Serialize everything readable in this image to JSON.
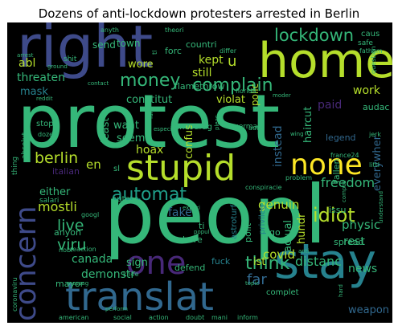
{
  "title": "Dozens of anti-lockdown protesters arrested in Berlin",
  "colors": {
    "background": "#000000",
    "green": "#35b779",
    "lime": "#b5de2b",
    "yellow": "#fde725",
    "teal": "#1f9e89",
    "blue": "#31688e",
    "indigo": "#3e4a89",
    "purple": "#482878",
    "cyan": "#26828e"
  },
  "words": [
    {
      "text": "protest"
    },
    {
      "text": "peopl"
    },
    {
      "text": "right"
    },
    {
      "text": "home"
    },
    {
      "text": "stay"
    },
    {
      "text": "translat"
    },
    {
      "text": "stupid"
    },
    {
      "text": "one"
    },
    {
      "text": "concern"
    },
    {
      "text": "none"
    },
    {
      "text": "lockdown"
    },
    {
      "text": "complain"
    },
    {
      "text": "money"
    },
    {
      "text": "automat"
    },
    {
      "text": "berlin"
    },
    {
      "text": "live"
    },
    {
      "text": "viru"
    },
    {
      "text": "idiot"
    },
    {
      "text": "think"
    },
    {
      "text": "covid"
    },
    {
      "text": "distanc"
    },
    {
      "text": "mostli"
    },
    {
      "text": "fake"
    },
    {
      "text": "genuin"
    },
    {
      "text": "freedom"
    },
    {
      "text": "physic"
    },
    {
      "text": "rest"
    },
    {
      "text": "news"
    },
    {
      "text": "canada"
    },
    {
      "text": "sign"
    },
    {
      "text": "far"
    },
    {
      "text": "demonstr"
    },
    {
      "text": "kept"
    },
    {
      "text": "still"
    },
    {
      "text": "wore"
    },
    {
      "text": "abl"
    },
    {
      "text": "threaten"
    },
    {
      "text": "mask"
    },
    {
      "text": "constitut"
    },
    {
      "text": "violat"
    },
    {
      "text": "polic"
    },
    {
      "text": "paid"
    },
    {
      "text": "work"
    },
    {
      "text": "instead"
    },
    {
      "text": "actual"
    },
    {
      "text": "hundr"
    },
    {
      "text": "everywher"
    },
    {
      "text": "haircut"
    },
    {
      "text": "want"
    },
    {
      "text": "seem"
    },
    {
      "text": "hoax"
    },
    {
      "text": "confus"
    },
    {
      "text": "least"
    },
    {
      "text": "en"
    },
    {
      "text": "italian"
    },
    {
      "text": "either"
    },
    {
      "text": "anyon"
    },
    {
      "text": "mayor"
    },
    {
      "text": "polit"
    },
    {
      "text": "ist"
    },
    {
      "text": "weapon"
    },
    {
      "text": "send"
    },
    {
      "text": "town"
    },
    {
      "text": "forc"
    },
    {
      "text": "countri"
    },
    {
      "text": "flamethrow"
    },
    {
      "text": "audac"
    },
    {
      "text": "ti"
    },
    {
      "text": "bore"
    },
    {
      "text": "astroturf"
    },
    {
      "text": "privileg"
    },
    {
      "text": "go"
    },
    {
      "text": "spread"
    },
    {
      "text": "issu"
    },
    {
      "text": "fuck"
    },
    {
      "text": "defend"
    },
    {
      "text": "nutcas"
    },
    {
      "text": "salari"
    },
    {
      "text": "encourag"
    },
    {
      "text": "germani"
    },
    {
      "text": "legend"
    },
    {
      "text": "fallen"
    },
    {
      "text": "stop"
    },
    {
      "text": "sl"
    },
    {
      "text": "thing"
    },
    {
      "text": "absolut"
    },
    {
      "text": "shit"
    },
    {
      "text": "u"
    },
    {
      "text": "caus"
    },
    {
      "text": "safe"
    },
    {
      "text": "fathom"
    },
    {
      "text": "question"
    },
    {
      "text": "anyth"
    },
    {
      "text": "theori"
    },
    {
      "text": "differ"
    },
    {
      "text": "arrest"
    },
    {
      "text": "ground"
    },
    {
      "text": "contact"
    },
    {
      "text": "reddit"
    },
    {
      "text": "florida"
    },
    {
      "text": "moder"
    },
    {
      "text": "wing"
    },
    {
      "text": "jerk"
    },
    {
      "text": "littl"
    },
    {
      "text": "france24"
    },
    {
      "text": "dozen"
    },
    {
      "text": "problem"
    },
    {
      "text": "auto"
    },
    {
      "text": "conspiracie"
    },
    {
      "text": "compos"
    },
    {
      "text": "understand"
    },
    {
      "text": "googl"
    },
    {
      "text": "nobl"
    },
    {
      "text": "reaction"
    },
    {
      "text": "messag"
    },
    {
      "text": "knee"
    },
    {
      "text": "experi"
    },
    {
      "text": "popul"
    },
    {
      "text": "anti"
    },
    {
      "text": "topic"
    },
    {
      "text": "complet"
    },
    {
      "text": "american"
    },
    {
      "text": "social"
    },
    {
      "text": "action"
    },
    {
      "text": "doubt"
    },
    {
      "text": "mani"
    },
    {
      "text": "inform"
    },
    {
      "text": "hard"
    },
    {
      "text": "coronaviru"
    },
    {
      "text": "perform"
    },
    {
      "text": "especi"
    },
    {
      "text": "pleas"
    },
    {
      "text": "fail"
    },
    {
      "text": "tl"
    }
  ]
}
